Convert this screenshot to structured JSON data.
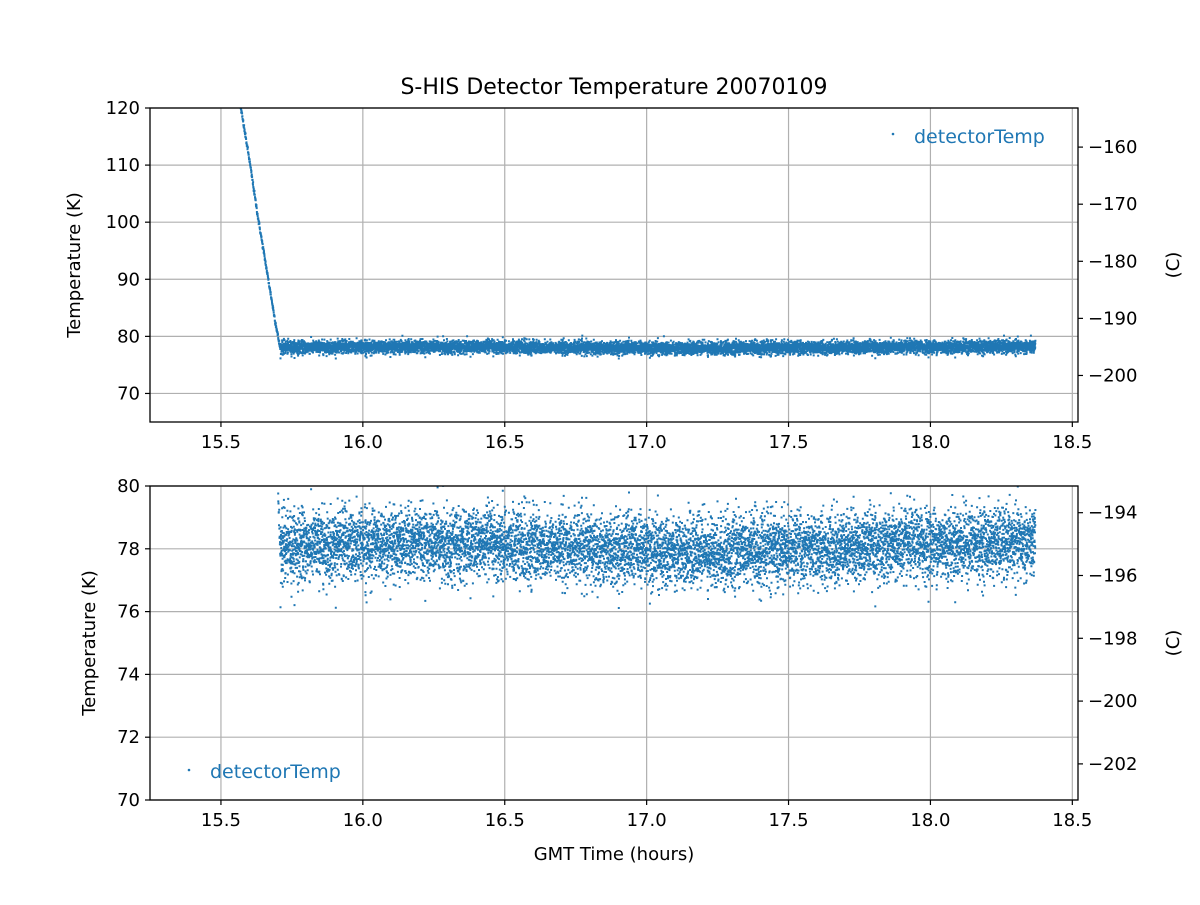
{
  "title": "S-HIS Detector Temperature 20070109",
  "xlabel": "GMT Time (hours)",
  "colors": {
    "series": "#1f77b4",
    "grid": "#b0b0b0",
    "axes": "#000000",
    "background": "#ffffff"
  },
  "chart_data": [
    {
      "type": "scatter",
      "title": "S-HIS Detector Temperature 20070109",
      "xlabel": "",
      "ylabel": "Temperature (K)",
      "y2label": "(C)",
      "xlim": [
        15.25,
        18.52
      ],
      "ylim": [
        65,
        120
      ],
      "y2lim": [
        -208.15,
        -153.15
      ],
      "xticks": [
        15.5,
        16.0,
        16.5,
        17.0,
        17.5,
        18.0,
        18.5
      ],
      "yticks": [
        70,
        80,
        90,
        100,
        110,
        120
      ],
      "y2ticks": [
        -200,
        -190,
        -180,
        -170,
        -160
      ],
      "grid": true,
      "legend": {
        "position": "top-right",
        "entries": [
          "detectorTemp"
        ]
      },
      "series": [
        {
          "name": "detectorTemp",
          "marker": "point",
          "description_of_trend": {
            "cooldown": {
              "x": [
                15.57,
                15.6,
                15.63,
                15.66,
                15.69,
                15.71
              ],
              "y": [
                120,
                111,
                101,
                92,
                83,
                77.5
              ]
            },
            "plateau": {
              "x_range": [
                15.71,
                18.37
              ],
              "y_mean": 78.1,
              "y_noise_range": [
                76.0,
                80.3
              ]
            }
          }
        }
      ]
    },
    {
      "type": "scatter",
      "xlabel": "GMT Time (hours)",
      "ylabel": "Temperature (K)",
      "y2label": "(C)",
      "xlim": [
        15.25,
        18.52
      ],
      "ylim": [
        70,
        80
      ],
      "y2lim": [
        -203.15,
        -193.15
      ],
      "xticks": [
        15.5,
        16.0,
        16.5,
        17.0,
        17.5,
        18.0,
        18.5
      ],
      "yticks": [
        70,
        72,
        74,
        76,
        78,
        80
      ],
      "y2ticks": [
        -202,
        -200,
        -198,
        -196,
        -194
      ],
      "grid": true,
      "legend": {
        "position": "bottom-left",
        "entries": [
          "detectorTemp"
        ]
      },
      "series": [
        {
          "name": "detectorTemp",
          "marker": "point",
          "description_of_trend": {
            "cooldown": {
              "x": [
                15.69,
                15.7,
                15.71
              ],
              "y": [
                80,
                79,
                78
              ]
            },
            "plateau": {
              "x_range": [
                15.71,
                18.37
              ],
              "y_mean": 78.1,
              "y_noise_range": [
                76.0,
                80.3
              ]
            }
          }
        }
      ]
    }
  ]
}
